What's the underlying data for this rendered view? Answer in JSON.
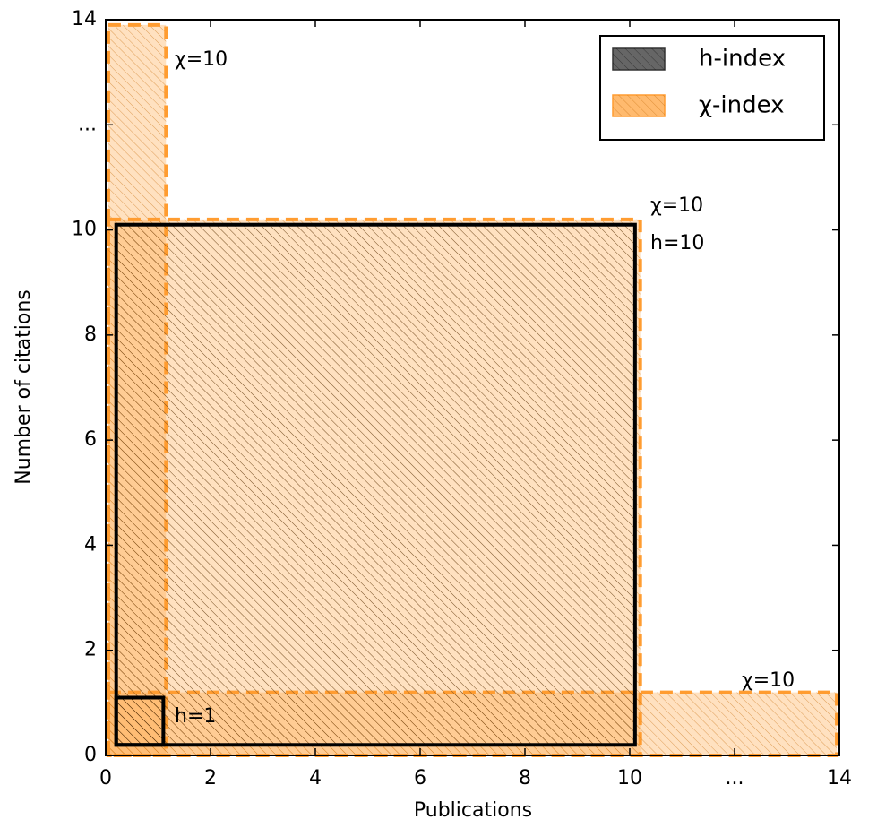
{
  "chart_data": {
    "type": "rect",
    "xlabel": "Publications",
    "ylabel": "Number of citations",
    "xlim": [
      0,
      14
    ],
    "ylim": [
      0,
      14
    ],
    "xticks": [
      0,
      2,
      4,
      6,
      8,
      10,
      {
        "value": 12,
        "label": "..."
      },
      14
    ],
    "yticks": [
      0,
      2,
      4,
      6,
      8,
      10,
      {
        "value": 12,
        "label": "..."
      },
      14
    ],
    "legend": "upper right",
    "series": [
      {
        "name": "h-index",
        "color": "#555555",
        "rects": [
          {
            "x": [
              0.2,
              10.1
            ],
            "y": [
              0.2,
              10.1
            ]
          },
          {
            "x": [
              0.2,
              1.1
            ],
            "y": [
              0.2,
              1.1
            ]
          }
        ]
      },
      {
        "name": "χ-index",
        "color": "#ff9c30",
        "rects": [
          {
            "x": [
              0.05,
              1.15
            ],
            "y": [
              0,
              13.9
            ]
          },
          {
            "x": [
              0.05,
              10.2
            ],
            "y": [
              0,
              10.2
            ]
          },
          {
            "x": [
              0.05,
              13.95
            ],
            "y": [
              0,
              1.2
            ]
          }
        ]
      }
    ],
    "annotations": [
      "χ=10",
      "χ=10",
      "h=10",
      "χ=10",
      "h=1"
    ]
  }
}
